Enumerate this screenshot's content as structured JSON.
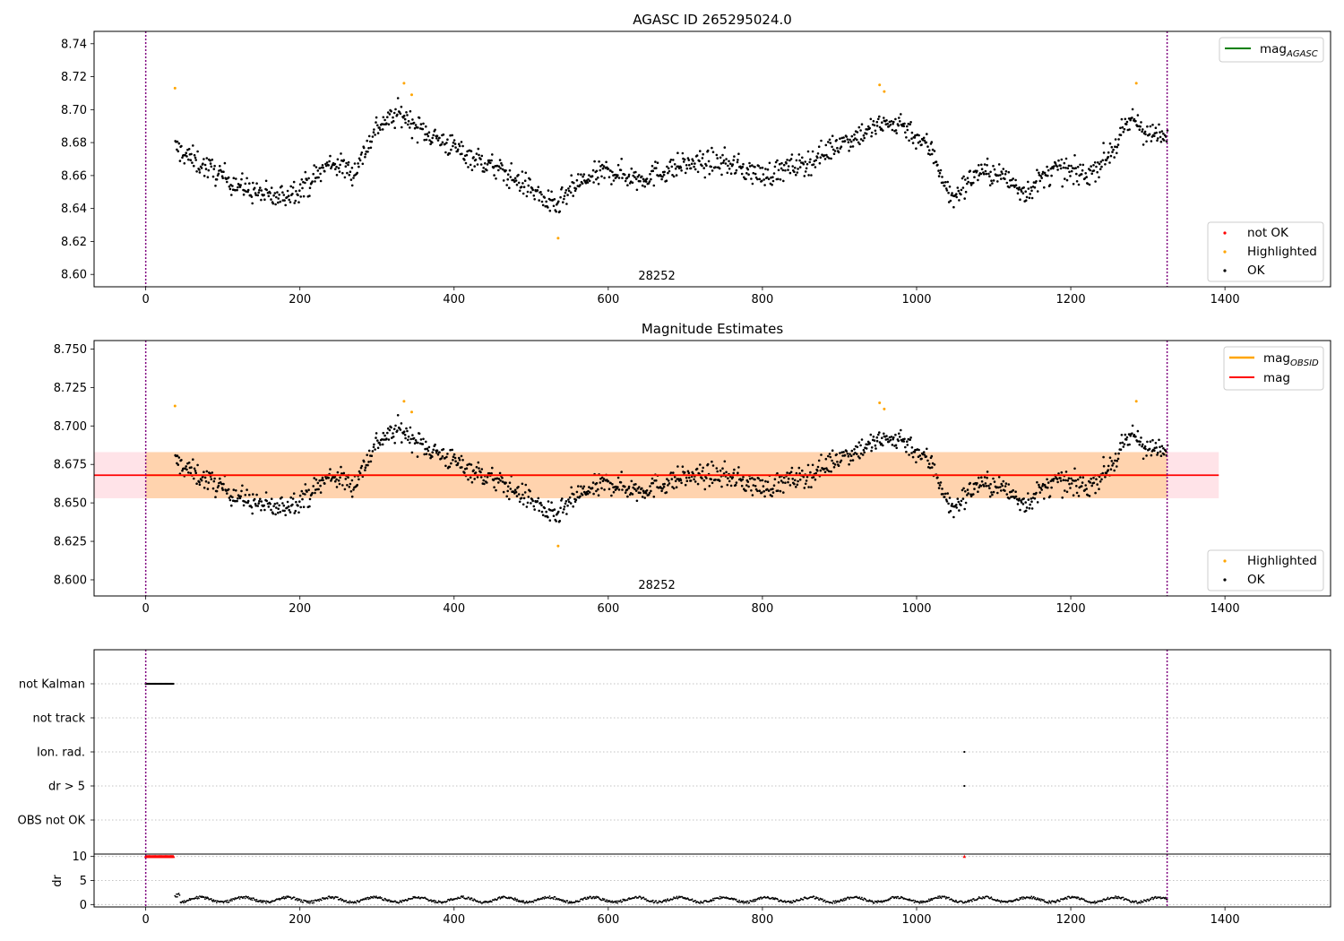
{
  "chart_data": [
    {
      "type": "scatter",
      "title": "AGASC ID 265295024.0",
      "xlim": [
        -67,
        1537
      ],
      "ylim": [
        8.5925,
        8.7475
      ],
      "xticks": [
        0,
        200,
        400,
        600,
        800,
        1000,
        1200,
        1400
      ],
      "yticks": [
        8.6,
        8.62,
        8.64,
        8.66,
        8.68,
        8.7,
        8.72,
        8.74
      ],
      "ytick_labels": [
        "8.60",
        "8.62",
        "8.64",
        "8.66",
        "8.68",
        "8.70",
        "8.72",
        "8.74"
      ],
      "vlines": [
        0,
        1325
      ],
      "obsid_label": "28252",
      "obsid_label_x": 663,
      "lines": [
        {
          "name": "mag_AGASC",
          "color": "#008000"
        }
      ],
      "series": [
        {
          "name": "not OK",
          "color": "#ff0000",
          "points": []
        },
        {
          "name": "Highlighted",
          "color": "#ffa500",
          "points": [
            [
              38,
              8.713
            ],
            [
              335,
              8.716
            ],
            [
              345,
              8.709
            ],
            [
              952,
              8.715
            ],
            [
              958,
              8.711
            ],
            [
              535,
              8.622
            ],
            [
              1285,
              8.716
            ]
          ]
        },
        {
          "name": "OK",
          "color": "#000000",
          "generated": "time series ~1290 samples, x 38-1325, mag 8.63-8.71"
        }
      ],
      "legend_lines": {
        "position": "upper right",
        "entries": [
          {
            "label": "mag",
            "subscript": "AGASC",
            "color": "#008000"
          }
        ]
      },
      "legend_points": {
        "position": "lower right",
        "entries": [
          {
            "label": "not OK",
            "color": "#ff0000"
          },
          {
            "label": "Highlighted",
            "color": "#ffa500"
          },
          {
            "label": "OK",
            "color": "#000000"
          }
        ]
      }
    },
    {
      "type": "scatter",
      "title": "Magnitude Estimates",
      "xlim": [
        -67,
        1537
      ],
      "ylim": [
        8.5895,
        8.7555
      ],
      "xticks": [
        0,
        200,
        400,
        600,
        800,
        1000,
        1200,
        1400
      ],
      "yticks": [
        8.6,
        8.625,
        8.65,
        8.675,
        8.7,
        8.725,
        8.75
      ],
      "ytick_labels": [
        "8.600",
        "8.625",
        "8.650",
        "8.675",
        "8.700",
        "8.725",
        "8.750"
      ],
      "vlines": [
        0,
        1325
      ],
      "obsid_label": "28252",
      "obsid_label_x": 663,
      "mag": 8.668,
      "mag_band": [
        8.653,
        8.683
      ],
      "mag_band_x": [
        -67,
        1392
      ],
      "mag_obsid_band": [
        8.653,
        8.683
      ],
      "mag_obsid_band_x": [
        0,
        1325
      ],
      "series": [
        {
          "name": "Highlighted",
          "color": "#ffa500",
          "points": [
            [
              38,
              8.713
            ],
            [
              335,
              8.716
            ],
            [
              345,
              8.709
            ],
            [
              952,
              8.715
            ],
            [
              958,
              8.711
            ],
            [
              535,
              8.622
            ],
            [
              1285,
              8.716
            ]
          ]
        },
        {
          "name": "OK",
          "color": "#000000",
          "generated": "same time series as panel 1"
        }
      ],
      "legend_lines": {
        "position": "upper right",
        "entries": [
          {
            "label": "mag",
            "subscript": "OBSID",
            "color": "#ffa500"
          },
          {
            "label": "mag",
            "subscript": "",
            "color": "#ff0000"
          }
        ]
      },
      "legend_points": {
        "position": "lower right",
        "entries": [
          {
            "label": "Highlighted",
            "color": "#ffa500"
          },
          {
            "label": "OK",
            "color": "#000000"
          }
        ]
      }
    },
    {
      "type": "scatter",
      "title": "",
      "xlim": [
        -67,
        1537
      ],
      "flag_rows": [
        "not Kalman",
        "not track",
        "Ion. rad.",
        "dr > 5",
        "OBS not OK"
      ],
      "flags": [
        {
          "row": "not Kalman",
          "x_range": [
            0,
            36
          ]
        },
        {
          "row": "Ion. rad.",
          "x": [
            1062
          ]
        },
        {
          "row": "dr > 5",
          "x": [
            1062
          ]
        }
      ],
      "vlines": [
        0,
        1325
      ]
    },
    {
      "type": "scatter",
      "title": "",
      "ylabel": "dr",
      "xlim": [
        -67,
        1537
      ],
      "ylim": [
        -0.5,
        10.5
      ],
      "xticks": [
        0,
        200,
        400,
        600,
        800,
        1000,
        1200,
        1400
      ],
      "yticks": [
        0,
        5,
        10
      ],
      "ytick_labels": [
        "0",
        "5",
        "10"
      ],
      "vlines": [
        0,
        1325
      ],
      "capped_points": {
        "value": 10,
        "color": "#ff0000",
        "x_range": [
          0,
          36
        ],
        "x_extra": [
          1062
        ]
      },
      "series": [
        {
          "name": "dr",
          "color": "#000000",
          "generated": "dr values ~0.5-2 along x 38-1325"
        }
      ]
    }
  ]
}
